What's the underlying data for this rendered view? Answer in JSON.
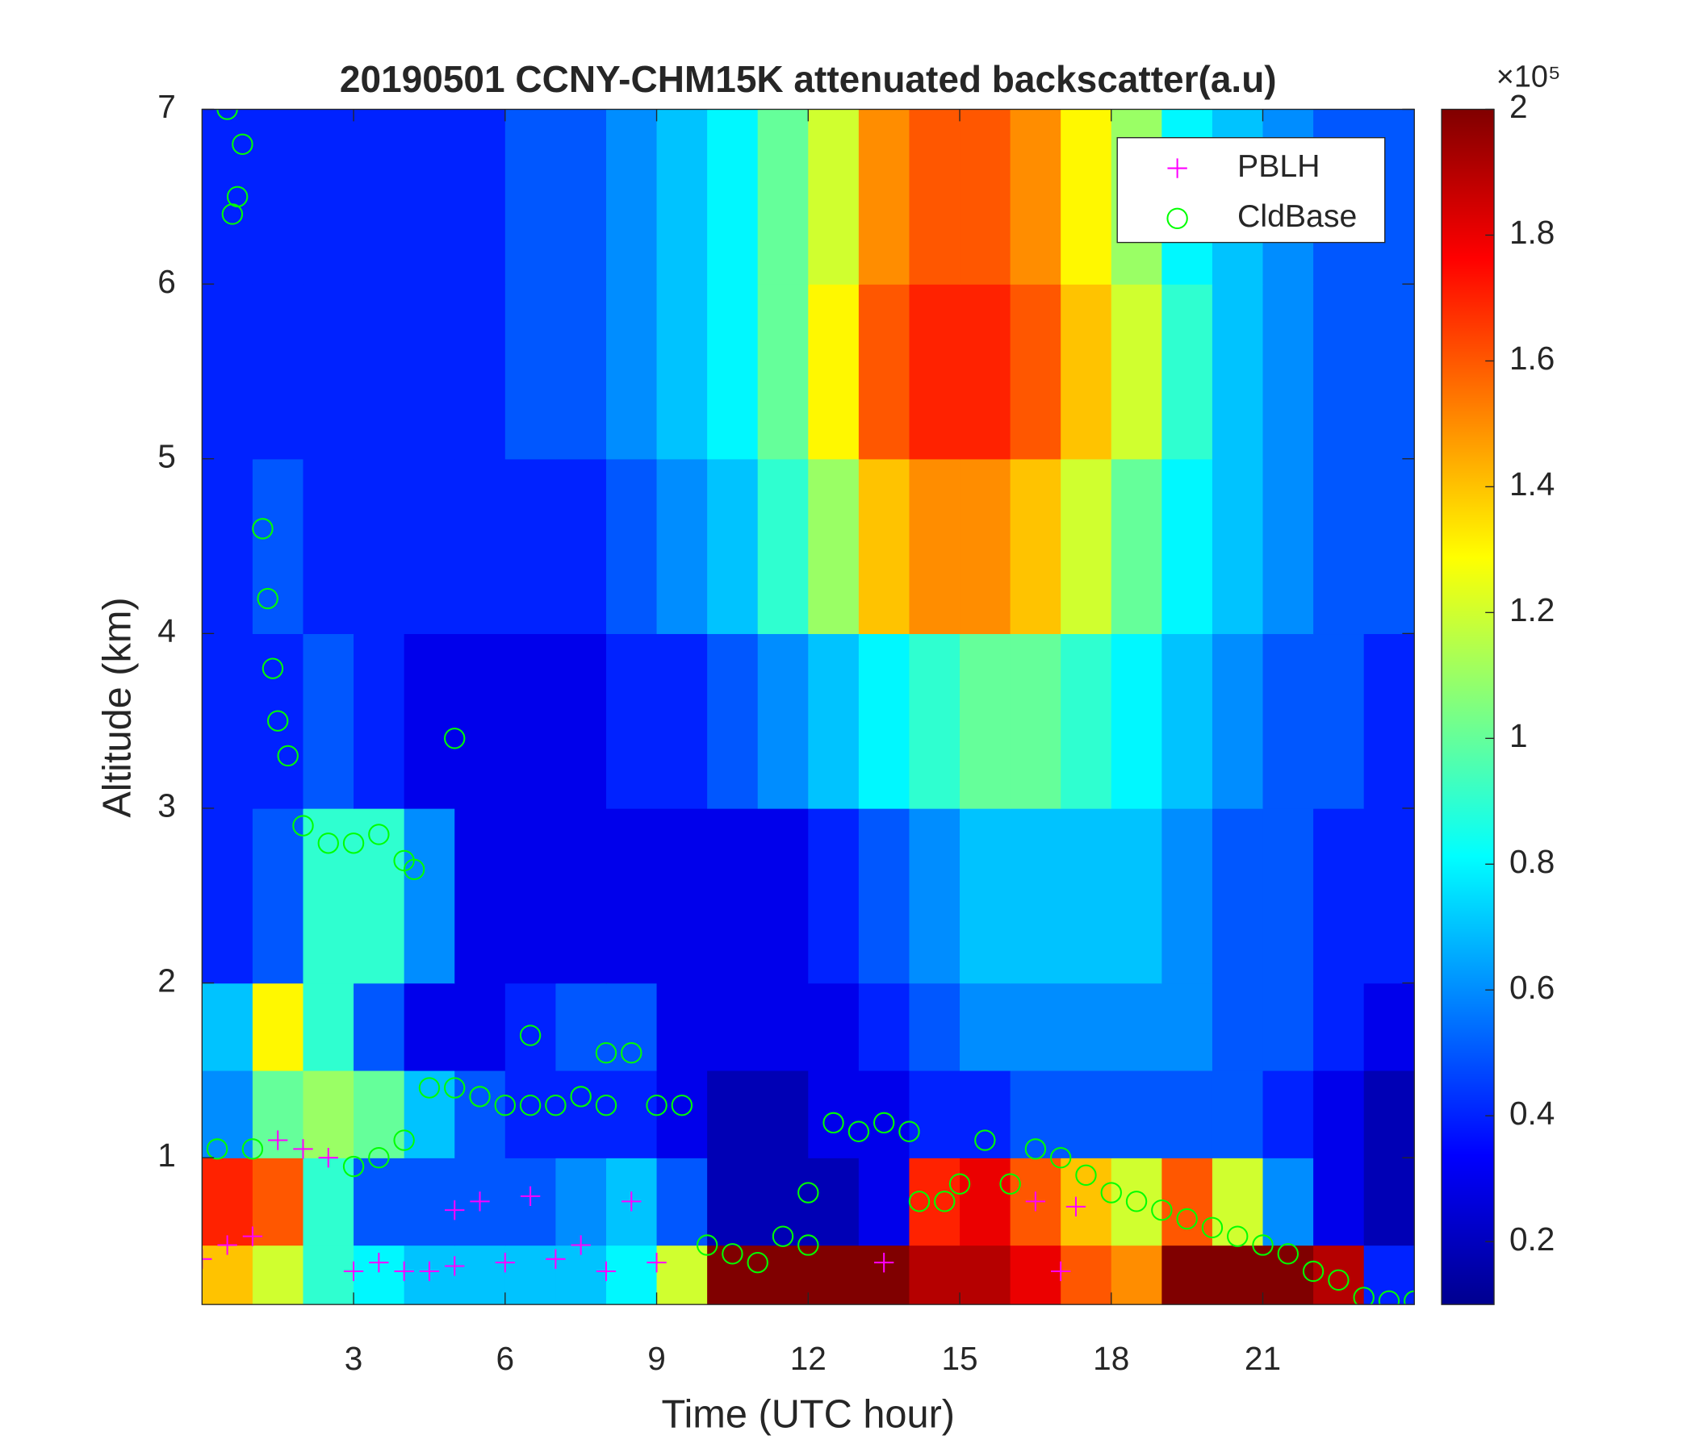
{
  "chart_data": {
    "type": "heatmap",
    "title": "20190501 CCNY-CHM15K attenuated backscatter(a.u)",
    "x_label": "Time (UTC hour)",
    "y_label": "Altitude (km)",
    "xlim": [
      0,
      24
    ],
    "xticks": [
      3,
      6,
      9,
      12,
      15,
      18,
      21
    ],
    "ylim": [
      0.16,
      7
    ],
    "yticks": [
      1,
      2,
      3,
      4,
      5,
      6,
      7
    ],
    "colormap": "jet",
    "clim": [
      0.1,
      2
    ],
    "cticks": [
      0.2,
      0.4,
      0.6,
      0.8,
      1,
      1.2,
      1.4,
      1.6,
      1.8,
      2
    ],
    "colorbar_exponent": "×10⁵",
    "legend": "upper right",
    "x_edges": [
      0,
      1,
      2,
      3,
      4,
      5,
      6,
      7,
      8,
      9,
      10,
      11,
      12,
      13,
      14,
      15,
      16,
      17,
      18,
      19,
      20,
      21,
      22,
      23,
      24
    ],
    "y_edges": [
      0.16,
      0.5,
      1,
      1.5,
      2,
      3,
      4,
      5,
      6,
      7
    ],
    "z": [
      [
        1.4,
        1.2,
        0.9,
        0.8,
        0.7,
        0.7,
        0.7,
        0.7,
        0.8,
        1.2,
        2,
        2,
        2,
        2,
        1.9,
        1.9,
        1.8,
        1.6,
        1.5,
        2,
        2,
        2,
        1.9,
        0.4
      ],
      [
        1.7,
        1.6,
        0.9,
        0.5,
        0.5,
        0.5,
        0.5,
        0.6,
        0.7,
        0.5,
        0.2,
        0.2,
        0.2,
        0.3,
        1.7,
        1.8,
        1.6,
        1.4,
        1.2,
        1.6,
        1.2,
        0.6,
        0.3,
        0.2
      ],
      [
        0.6,
        1.0,
        1.1,
        1.0,
        0.7,
        0.5,
        0.4,
        0.4,
        0.4,
        0.3,
        0.2,
        0.2,
        0.3,
        0.3,
        0.4,
        0.4,
        0.5,
        0.5,
        0.5,
        0.5,
        0.5,
        0.4,
        0.3,
        0.2
      ],
      [
        0.7,
        1.3,
        0.9,
        0.5,
        0.3,
        0.3,
        0.4,
        0.5,
        0.5,
        0.3,
        0.3,
        0.3,
        0.3,
        0.4,
        0.5,
        0.6,
        0.6,
        0.6,
        0.6,
        0.6,
        0.5,
        0.5,
        0.4,
        0.3
      ],
      [
        0.4,
        0.5,
        0.9,
        0.9,
        0.6,
        0.3,
        0.3,
        0.3,
        0.3,
        0.3,
        0.3,
        0.3,
        0.4,
        0.5,
        0.6,
        0.7,
        0.7,
        0.7,
        0.7,
        0.6,
        0.5,
        0.5,
        0.4,
        0.4
      ],
      [
        0.4,
        0.4,
        0.5,
        0.4,
        0.3,
        0.3,
        0.3,
        0.3,
        0.4,
        0.4,
        0.5,
        0.6,
        0.7,
        0.8,
        0.9,
        1.0,
        1.0,
        0.9,
        0.8,
        0.7,
        0.6,
        0.5,
        0.5,
        0.4
      ],
      [
        0.4,
        0.5,
        0.4,
        0.4,
        0.4,
        0.4,
        0.4,
        0.4,
        0.5,
        0.6,
        0.7,
        0.9,
        1.1,
        1.4,
        1.5,
        1.5,
        1.4,
        1.2,
        1.0,
        0.8,
        0.7,
        0.6,
        0.5,
        0.5
      ],
      [
        0.4,
        0.4,
        0.4,
        0.4,
        0.4,
        0.4,
        0.5,
        0.5,
        0.6,
        0.7,
        0.8,
        1.0,
        1.3,
        1.6,
        1.7,
        1.7,
        1.6,
        1.4,
        1.2,
        0.9,
        0.7,
        0.6,
        0.5,
        0.5
      ],
      [
        0.4,
        0.4,
        0.4,
        0.4,
        0.4,
        0.4,
        0.5,
        0.5,
        0.6,
        0.7,
        0.8,
        1.0,
        1.2,
        1.5,
        1.6,
        1.6,
        1.5,
        1.3,
        1.1,
        0.8,
        0.7,
        0.6,
        0.5,
        0.5
      ]
    ],
    "series": [
      {
        "name": "PBLH",
        "color": "#ff00ff",
        "marker": "plus",
        "x": [
          0,
          0.5,
          1,
          1.5,
          2,
          2.5,
          3,
          3.5,
          4,
          4.5,
          5,
          5,
          5.5,
          6,
          6.5,
          7,
          7.5,
          8,
          8.5,
          9,
          13.5,
          16.5,
          17,
          17.3
        ],
        "values": [
          0.42,
          0.5,
          0.55,
          1.1,
          1.05,
          1.0,
          0.35,
          0.4,
          0.35,
          0.35,
          0.38,
          0.7,
          0.75,
          0.4,
          0.78,
          0.42,
          0.5,
          0.35,
          0.75,
          0.4,
          0.4,
          0.75,
          0.35,
          0.72
        ]
      },
      {
        "name": "CldBase",
        "color": "#00ff00",
        "marker": "circle",
        "x": [
          0.5,
          0.7,
          0.8,
          0.6,
          1.0,
          0.3,
          1.2,
          1.3,
          1.4,
          1.5,
          1.7,
          2,
          2.5,
          3,
          3.5,
          4,
          4.2,
          5,
          3,
          3.5,
          4,
          4.5,
          5,
          5.5,
          6,
          6.5,
          6.5,
          7,
          7.5,
          8,
          8.5,
          8,
          9,
          9.5,
          10,
          10.5,
          11,
          11.5,
          12,
          12,
          12.5,
          13,
          13.5,
          14,
          14.2,
          14.7,
          15,
          15.5,
          16,
          16.5,
          17,
          17.5,
          18,
          18.5,
          19,
          19.5,
          20,
          20.5,
          21,
          21.5,
          22,
          22.5,
          23,
          23.5,
          24
        ],
        "values": [
          7.0,
          6.5,
          6.8,
          6.4,
          1.05,
          1.05,
          4.6,
          4.2,
          3.8,
          3.5,
          3.3,
          2.9,
          2.8,
          2.8,
          2.85,
          2.7,
          2.65,
          3.4,
          0.95,
          1.0,
          1.1,
          1.4,
          1.4,
          1.35,
          1.3,
          1.7,
          1.3,
          1.3,
          1.35,
          1.6,
          1.6,
          1.3,
          1.3,
          1.3,
          0.5,
          0.45,
          0.4,
          0.55,
          0.5,
          0.8,
          1.2,
          1.15,
          1.2,
          1.15,
          0.75,
          0.75,
          0.85,
          1.1,
          0.85,
          1.05,
          1.0,
          0.9,
          0.8,
          0.75,
          0.7,
          0.65,
          0.6,
          0.55,
          0.5,
          0.45,
          0.35,
          0.3,
          0.2,
          0.18,
          0.18
        ]
      }
    ]
  }
}
